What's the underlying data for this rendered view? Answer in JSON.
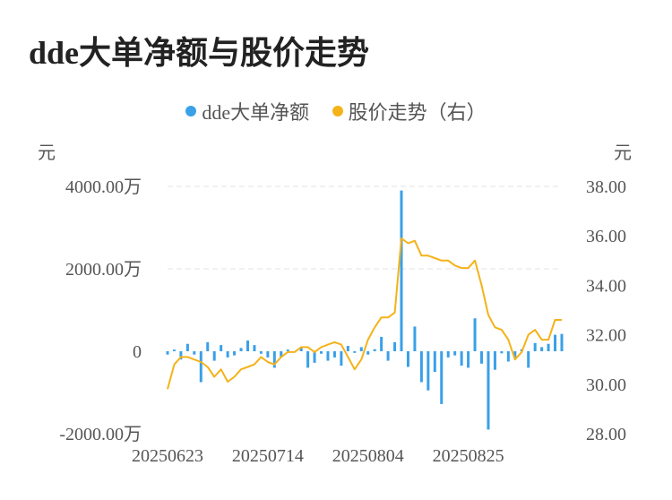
{
  "title": "dde大单净额与股价走势",
  "colors": {
    "bar": "#3aa0e8",
    "line": "#f5b21a",
    "grid": "#e3e3e3"
  },
  "chart_data": {
    "type": "bar+line",
    "legend": [
      {
        "name": "dde大单净额",
        "color": "#3aa0e8"
      },
      {
        "name": "股价走势（右）",
        "color": "#f5b21a"
      }
    ],
    "y_left": {
      "unit_label": "元",
      "range": [
        -2000,
        4000
      ],
      "ticks": [
        {
          "value": 4000,
          "label": "4000.00万"
        },
        {
          "value": 2000,
          "label": "2000.00万"
        },
        {
          "value": 0,
          "label": "0"
        },
        {
          "value": -2000,
          "label": "-2000.00万"
        }
      ]
    },
    "y_right": {
      "unit_label": "元",
      "range": [
        28,
        38
      ],
      "ticks": [
        {
          "value": 38,
          "label": "38.00"
        },
        {
          "value": 36,
          "label": "36.00"
        },
        {
          "value": 34,
          "label": "34.00"
        },
        {
          "value": 32,
          "label": "32.00"
        },
        {
          "value": 30,
          "label": "30.00"
        },
        {
          "value": 28,
          "label": "28.00"
        }
      ]
    },
    "x_tick_labels": [
      {
        "index": 0,
        "label": "20250623"
      },
      {
        "index": 15,
        "label": "20250714"
      },
      {
        "index": 30,
        "label": "20250804"
      },
      {
        "index": 45,
        "label": "20250825"
      }
    ],
    "n_points": 60,
    "bar_values": [
      -80,
      40,
      -200,
      180,
      -80,
      -750,
      220,
      -230,
      150,
      -150,
      -100,
      80,
      260,
      150,
      -60,
      -150,
      -400,
      -150,
      40,
      0,
      100,
      -400,
      -280,
      -60,
      -230,
      -150,
      -350,
      130,
      -40,
      100,
      -80,
      50,
      350,
      -230,
      220,
      3900,
      -380,
      600,
      -750,
      -950,
      -500,
      -1280,
      -150,
      -100,
      -350,
      -400,
      800,
      -300,
      -1900,
      -450,
      -50,
      -250,
      -150,
      50,
      -400,
      200,
      100,
      180,
      400,
      420
    ],
    "line_values": [
      29.8,
      30.8,
      31.1,
      31.1,
      31.0,
      30.9,
      30.7,
      30.3,
      30.6,
      30.1,
      30.3,
      30.6,
      30.7,
      30.8,
      31.1,
      30.9,
      30.8,
      31.1,
      31.3,
      31.3,
      31.5,
      31.5,
      31.3,
      31.5,
      31.6,
      31.7,
      31.6,
      31.1,
      30.6,
      31.0,
      31.8,
      32.3,
      32.7,
      32.7,
      32.9,
      35.9,
      35.7,
      35.8,
      35.2,
      35.2,
      35.1,
      35.0,
      35.0,
      34.8,
      34.7,
      34.7,
      35.0,
      34.0,
      32.8,
      32.3,
      32.2,
      31.8,
      31.0,
      31.3,
      32.0,
      32.2,
      31.8,
      31.8,
      32.6,
      32.6
    ]
  }
}
